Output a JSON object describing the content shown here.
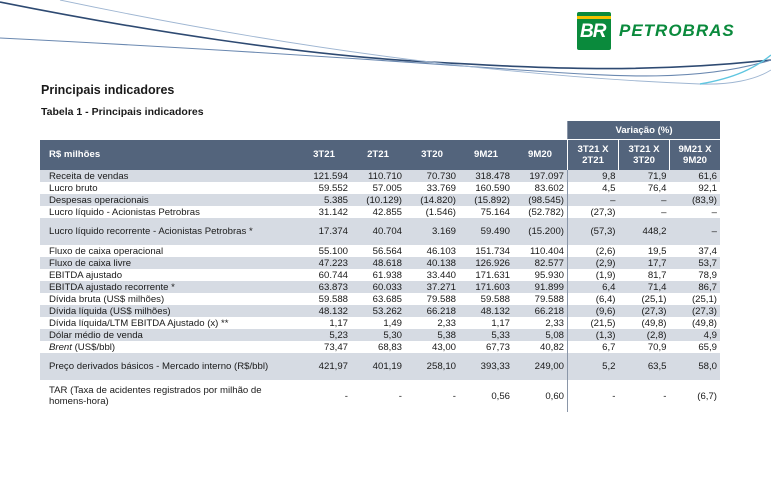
{
  "logo": {
    "mark": "BR",
    "name": "PETROBRAS",
    "color": "#0a8a3c",
    "accent": "#f2c200"
  },
  "section_title": "Principais indicadores",
  "table_title": "Tabela 1 - Principais indicadores",
  "table": {
    "variation_header": "Variação (%)",
    "row_header": "R$ milhões",
    "columns": [
      "3T21",
      "2T21",
      "3T20",
      "9M21",
      "9M20"
    ],
    "variation_columns": [
      {
        "l1": "3T21 X",
        "l2": "2T21"
      },
      {
        "l1": "3T21 X",
        "l2": "3T20"
      },
      {
        "l1": "9M21 X",
        "l2": "9M20"
      }
    ],
    "rows": [
      {
        "label": "Receita de vendas",
        "values": [
          "121.594",
          "110.710",
          "70.730",
          "318.478",
          "197.097"
        ],
        "var": [
          "9,8",
          "71,9",
          "61,6"
        ]
      },
      {
        "label": "Lucro bruto",
        "values": [
          "59.552",
          "57.005",
          "33.769",
          "160.590",
          "83.602"
        ],
        "var": [
          "4,5",
          "76,4",
          "92,1"
        ]
      },
      {
        "label": "Despesas operacionais",
        "values": [
          "5.385",
          "(10.129)",
          "(14.820)",
          "(15.892)",
          "(98.545)"
        ],
        "var": [
          "–",
          "–",
          "(83,9)"
        ]
      },
      {
        "label": "Lucro líquido - Acionistas Petrobras",
        "values": [
          "31.142",
          "42.855",
          "(1.546)",
          "75.164",
          "(52.782)"
        ],
        "var": [
          "(27,3)",
          "–",
          "–"
        ]
      },
      {
        "label": "Lucro líquido recorrente - Acionistas Petrobras *",
        "values": [
          "17.374",
          "40.704",
          "3.169",
          "59.490",
          "(15.200)"
        ],
        "var": [
          "(57,3)",
          "448,2",
          "–"
        ]
      },
      {
        "label": "Fluxo de caixa operacional",
        "values": [
          "55.100",
          "56.564",
          "46.103",
          "151.734",
          "110.404"
        ],
        "var": [
          "(2,6)",
          "19,5",
          "37,4"
        ]
      },
      {
        "label": "Fluxo de caixa livre",
        "values": [
          "47.223",
          "48.618",
          "40.138",
          "126.926",
          "82.577"
        ],
        "var": [
          "(2,9)",
          "17,7",
          "53,7"
        ]
      },
      {
        "label": "EBITDA ajustado",
        "values": [
          "60.744",
          "61.938",
          "33.440",
          "171.631",
          "95.930"
        ],
        "var": [
          "(1,9)",
          "81,7",
          "78,9"
        ]
      },
      {
        "label": "EBITDA ajustado recorrente *",
        "values": [
          "63.873",
          "60.033",
          "37.271",
          "171.603",
          "91.899"
        ],
        "var": [
          "6,4",
          "71,4",
          "86,7"
        ]
      },
      {
        "label": "Dívida bruta (US$ milhões)",
        "values": [
          "59.588",
          "63.685",
          "79.588",
          "59.588",
          "79.588"
        ],
        "var": [
          "(6,4)",
          "(25,1)",
          "(25,1)"
        ]
      },
      {
        "label": "Dívida líquida (US$ milhões)",
        "values": [
          "48.132",
          "53.262",
          "66.218",
          "48.132",
          "66.218"
        ],
        "var": [
          "(9,6)",
          "(27,3)",
          "(27,3)"
        ]
      },
      {
        "label": "Dívida líquida/LTM EBITDA Ajustado (x) **",
        "values": [
          "1,17",
          "1,49",
          "2,33",
          "1,17",
          "2,33"
        ],
        "var": [
          "(21,5)",
          "(49,8)",
          "(49,8)"
        ]
      },
      {
        "label": "Dólar médio de venda",
        "values": [
          "5,23",
          "5,30",
          "5,38",
          "5,33",
          "5,08"
        ],
        "var": [
          "(1,3)",
          "(2,8)",
          "4,9"
        ]
      },
      {
        "label": "Brent",
        "label_suffix": " (US$/bbl)",
        "values": [
          "73,47",
          "68,83",
          "43,00",
          "67,73",
          "40,82"
        ],
        "var": [
          "6,7",
          "70,9",
          "65,9"
        ]
      },
      {
        "label": "Preço derivados básicos - Mercado interno (R$/bbl)",
        "values": [
          "421,97",
          "401,19",
          "258,10",
          "393,33",
          "249,00"
        ],
        "var": [
          "5,2",
          "63,5",
          "58,0"
        ]
      },
      {
        "label": "TAR (Taxa de acidentes registrados por milhão de homens-hora)",
        "values": [
          "-",
          "-",
          "-",
          "0,56",
          "0,60"
        ],
        "var": [
          "-",
          "-",
          "(6,7)"
        ]
      }
    ]
  }
}
